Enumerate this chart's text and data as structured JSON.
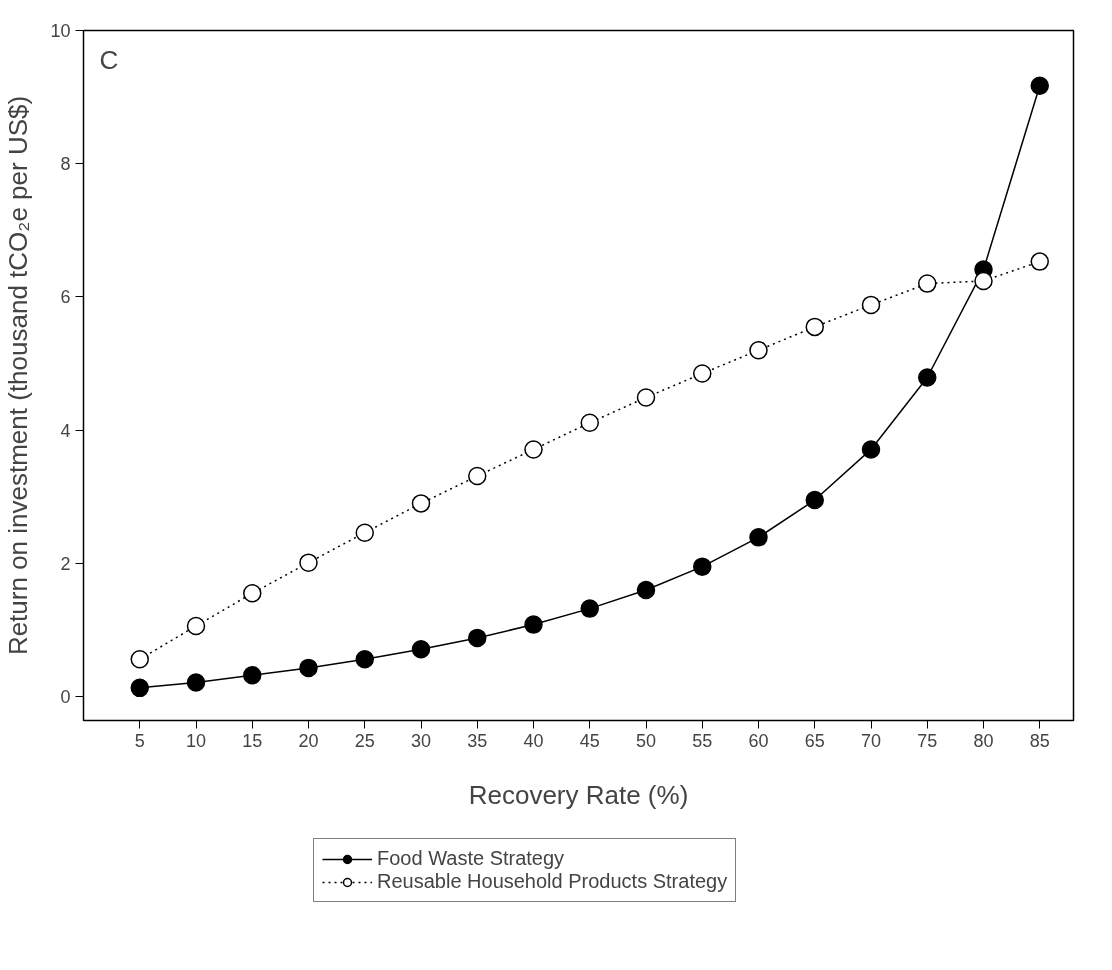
{
  "chart_data": {
    "type": "line",
    "xlabel": "Recovery Rate (%)",
    "ylabel": "Return on investment (thousand tCO₂e per US$)",
    "annotations": [
      "C"
    ],
    "x": [
      5,
      10,
      15,
      20,
      25,
      30,
      35,
      40,
      45,
      50,
      55,
      60,
      65,
      70,
      75,
      80,
      85
    ],
    "xlim": [
      0,
      88
    ],
    "xticks": [
      5,
      10,
      15,
      20,
      25,
      30,
      35,
      40,
      45,
      50,
      55,
      60,
      65,
      70,
      75,
      80,
      85
    ],
    "ylim": [
      -0.36,
      10
    ],
    "yticks": [
      0,
      2,
      4,
      6,
      8,
      10
    ],
    "grid": false,
    "legend": "bottom",
    "series": [
      {
        "name": "Food Waste Strategy",
        "color": "#000000",
        "marker": "circle",
        "line_style": "solid",
        "values": [
          0.13,
          0.21,
          0.32,
          0.43,
          0.56,
          0.71,
          0.88,
          1.08,
          1.32,
          1.6,
          1.95,
          2.39,
          2.95,
          3.71,
          4.79,
          6.41,
          9.17
        ]
      },
      {
        "name": "Reusable Household Products Strategy",
        "color": "#000000",
        "marker": "circle",
        "line_style": "dotted",
        "values": [
          0.56,
          1.06,
          1.55,
          2.01,
          2.46,
          2.9,
          3.31,
          3.71,
          4.11,
          4.49,
          4.85,
          5.2,
          5.55,
          5.88,
          6.2,
          6.24,
          6.53
        ]
      }
    ]
  }
}
